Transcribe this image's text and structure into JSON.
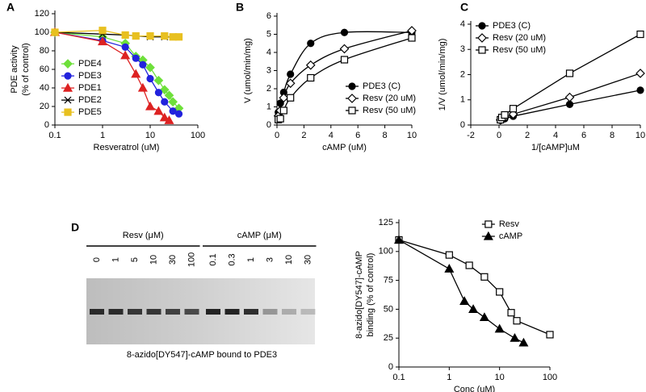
{
  "chart_data": [
    {
      "type": "line",
      "panel": "A",
      "xscale": "log",
      "xlim": [
        0.1,
        100
      ],
      "xticks": [
        0.1,
        1,
        10,
        100
      ],
      "ylim": [
        0,
        120
      ],
      "yticks": [
        0,
        20,
        40,
        60,
        80,
        100,
        120
      ],
      "xlabel": "Resveratrol (uM)",
      "ylabel": [
        "PDE activity",
        "(% of control)"
      ],
      "legend": "center left",
      "series": [
        {
          "name": "PDE4",
          "color": "#6ee03a",
          "marker": "diamond",
          "x": [
            0.1,
            1,
            3,
            5,
            7,
            10,
            15,
            20,
            25,
            30,
            40
          ],
          "values": [
            100,
            95,
            88,
            74,
            70,
            62,
            48,
            38,
            32,
            25,
            18
          ]
        },
        {
          "name": "PDE3",
          "color": "#2222dd",
          "marker": "circle",
          "x": [
            0.1,
            1,
            3,
            5,
            7,
            10,
            15,
            20,
            30,
            40
          ],
          "values": [
            100,
            91,
            84,
            72,
            65,
            50,
            35,
            25,
            15,
            12
          ]
        },
        {
          "name": "PDE1",
          "color": "#dd2222",
          "marker": "triangle",
          "x": [
            0.1,
            1,
            3,
            5,
            7,
            10,
            15,
            20,
            25
          ],
          "values": [
            100,
            90,
            75,
            55,
            40,
            20,
            15,
            8,
            5
          ]
        },
        {
          "name": "PDE2",
          "color": "#000000",
          "marker": "x",
          "x": [
            0.1,
            1,
            3,
            10,
            20,
            40
          ],
          "values": [
            100,
            98,
            97,
            95,
            95,
            95
          ]
        },
        {
          "name": "PDE5",
          "color": "#e8c020",
          "marker": "square",
          "x": [
            0.1,
            1,
            3,
            5,
            10,
            20,
            30,
            40
          ],
          "values": [
            100,
            102,
            97,
            96,
            96,
            96,
            95,
            95
          ]
        }
      ]
    },
    {
      "type": "line",
      "panel": "B",
      "smooth": true,
      "xlim": [
        0,
        10
      ],
      "xticks": [
        0,
        2,
        4,
        6,
        8,
        10
      ],
      "ylim": [
        0,
        6
      ],
      "yticks": [
        0,
        1,
        2,
        3,
        4,
        5,
        6
      ],
      "xlabel": "cAMP (uM)",
      "ylabel": [
        "V (umol/min/mg)"
      ],
      "legend": "lower right",
      "series": [
        {
          "name": "PDE3 (C)",
          "color": "#000000",
          "marker": "circle",
          "x": [
            0.1,
            0.25,
            0.5,
            1,
            2.5,
            5,
            10
          ],
          "values": [
            0.7,
            1.2,
            1.8,
            2.8,
            4.5,
            5.1,
            5.1
          ]
        },
        {
          "name": "Resv (20 uM)",
          "color": "#000000",
          "marker": "diamond",
          "open": true,
          "x": [
            0.1,
            0.25,
            0.5,
            1,
            2.5,
            5,
            10
          ],
          "values": [
            0.5,
            0.8,
            1.5,
            2.3,
            3.3,
            4.2,
            5.2
          ]
        },
        {
          "name": "Resv (50 uM)",
          "color": "#000000",
          "marker": "square",
          "open": true,
          "x": [
            0.1,
            0.25,
            0.5,
            1,
            2.5,
            5,
            10
          ],
          "values": [
            0.3,
            0.35,
            0.8,
            1.5,
            2.6,
            3.6,
            4.8
          ]
        }
      ]
    },
    {
      "type": "line",
      "panel": "C",
      "xlim": [
        -2,
        10
      ],
      "xticks": [
        -2,
        0,
        2,
        4,
        6,
        8,
        10
      ],
      "ylim": [
        0,
        4
      ],
      "yticks": [
        0,
        1,
        2,
        3,
        4
      ],
      "xlabel": "1/[cAMP]uM",
      "ylabel": [
        "1/V (umol/min/mg)"
      ],
      "legend": "upper left",
      "series": [
        {
          "name": "PDE3 (C)",
          "color": "#000000",
          "marker": "circle",
          "x": [
            0.1,
            0.2,
            0.4,
            1,
            5,
            10
          ],
          "values": [
            0.19,
            0.22,
            0.25,
            0.35,
            0.82,
            1.38
          ]
        },
        {
          "name": "Resv (20 uM)",
          "color": "#000000",
          "marker": "diamond",
          "open": true,
          "x": [
            0.1,
            0.2,
            0.4,
            1,
            5,
            10
          ],
          "values": [
            0.2,
            0.25,
            0.3,
            0.43,
            1.1,
            2.05
          ]
        },
        {
          "name": "Resv (50 uM)",
          "color": "#000000",
          "marker": "square",
          "open": true,
          "x": [
            0.1,
            0.2,
            0.4,
            1,
            5,
            10
          ],
          "values": [
            0.21,
            0.3,
            0.4,
            0.65,
            2.05,
            3.6
          ]
        }
      ]
    },
    {
      "type": "line",
      "panel": "D",
      "xscale": "log",
      "xlim": [
        0.1,
        100
      ],
      "xticks": [
        0.1,
        1,
        10,
        100
      ],
      "ylim": [
        0,
        125
      ],
      "yticks": [
        0,
        25,
        50,
        75,
        100,
        125
      ],
      "xlabel": "Conc (uM)",
      "ylabel": [
        "8-azido[DY547]-cAMP",
        "binding  (% of control)"
      ],
      "legend": "upper center",
      "series": [
        {
          "name": "Resv",
          "color": "#000000",
          "marker": "square",
          "open": true,
          "x": [
            0.1,
            1,
            2.5,
            5,
            10,
            17,
            22,
            100
          ],
          "values": [
            110,
            97,
            88,
            78,
            65,
            47,
            40,
            28
          ]
        },
        {
          "name": "cAMP",
          "color": "#000000",
          "marker": "triangle",
          "x": [
            0.1,
            1,
            2,
            3,
            5,
            10,
            20,
            30
          ],
          "values": [
            110,
            85,
            57,
            50,
            43,
            33,
            25,
            21
          ]
        }
      ]
    }
  ],
  "gel": {
    "groups": [
      {
        "label": "Resv (μM)",
        "lanes": [
          "0",
          "1",
          "5",
          "10",
          "30",
          "100"
        ]
      },
      {
        "label": "cAMP (μM)",
        "lanes": [
          "0.1",
          "0.3",
          "1",
          "3",
          "10",
          "30"
        ]
      }
    ],
    "caption": "8-azido[DY547]-cAMP bound to PDE3"
  }
}
